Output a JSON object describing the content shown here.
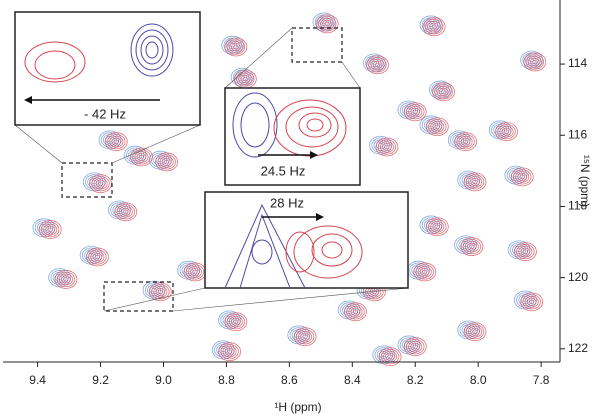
{
  "chart_data": {
    "type": "contour",
    "x_label": "¹H (ppm)",
    "y_label": "¹⁵N (ppm)",
    "xlim": [
      9.51,
      7.74
    ],
    "ylim": [
      112.2,
      122.37
    ],
    "x_inverted": true,
    "y_inverted": true,
    "xticks": [
      9.4,
      9.2,
      {
        "value": 9,
        "label": "9.0"
      },
      8.8,
      8.6,
      8.4,
      8.2,
      {
        "value": 8,
        "label": "8.0"
      },
      7.8
    ],
    "yticks": [
      114,
      116,
      118,
      120,
      122
    ],
    "annotations": [
      "- 42 Hz",
      "24.5 Hz",
      "28 Hz"
    ],
    "series": [
      {
        "color": "#5b8fd6",
        "x": [
          8.49,
          8.78,
          8.75,
          8.15,
          8.33,
          8.12,
          7.83,
          9.17,
          9.09,
          9.01,
          9.22,
          9.14,
          9.38,
          9.23,
          9.33,
          9.03,
          8.92,
          8.79,
          8.81,
          8.57,
          8.41,
          8.35,
          8.19,
          8.04,
          8.15,
          8.03,
          8.22,
          8.15,
          8.31,
          8.06,
          7.93,
          7.88,
          7.87,
          7.85,
          8.22,
          8.03,
          8.3
        ],
        "values": [
          112.82,
          113.47,
          114.37,
          112.9,
          113.97,
          114.73,
          113.89,
          116.13,
          116.56,
          116.7,
          117.31,
          118.1,
          118.6,
          119.37,
          120.0,
          120.35,
          119.79,
          121.19,
          122.03,
          121.61,
          120.91,
          120.35,
          119.79,
          119.08,
          118.52,
          117.26,
          115.29,
          115.71,
          116.28,
          116.13,
          115.85,
          117.12,
          119.22,
          120.63,
          121.89,
          121.47,
          122.17
        ]
      },
      {
        "color": "#d9434f",
        "x": [
          8.48,
          8.77,
          8.74,
          8.14,
          8.32,
          8.11,
          7.82,
          9.15,
          9.07,
          8.99,
          9.2,
          9.12,
          9.36,
          9.21,
          9.31,
          9.01,
          8.9,
          8.77,
          8.79,
          8.55,
          8.39,
          8.33,
          8.17,
          8.02,
          8.13,
          8.01,
          8.2,
          8.13,
          8.29,
          8.04,
          7.91,
          7.86,
          7.85,
          7.83,
          8.2,
          8.01,
          8.28
        ],
        "values": [
          112.87,
          113.52,
          114.42,
          112.95,
          114.02,
          114.78,
          113.94,
          116.18,
          116.61,
          116.75,
          117.36,
          118.15,
          118.65,
          119.42,
          120.05,
          120.4,
          119.84,
          121.24,
          122.08,
          121.66,
          120.96,
          120.4,
          119.84,
          119.13,
          118.57,
          117.31,
          115.34,
          115.76,
          116.33,
          116.18,
          115.9,
          117.17,
          119.27,
          120.68,
          121.94,
          121.52,
          122.22
        ]
      }
    ]
  }
}
